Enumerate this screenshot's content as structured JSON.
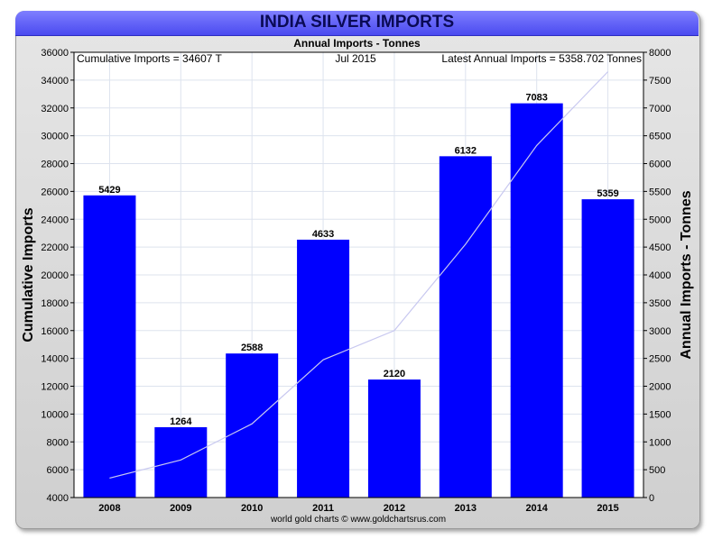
{
  "header": {
    "title": "INDIA SILVER IMPORTS",
    "subtitle": "Annual Imports - Tonnes"
  },
  "info": {
    "left": "Cumulative Imports = 34607 T",
    "center": "Jul 2015",
    "right": "Latest Annual Imports = 5358.702 Tonnes"
  },
  "footer": {
    "credit": "world gold charts © www.goldchartsrus.com"
  },
  "colors": {
    "bar": "#0000ff",
    "line": "#c8c8f0",
    "panel": "#dcdcdc",
    "title_bar": "#5a5af5",
    "title_text": "#0a0a55"
  },
  "chart_data": {
    "type": "bar",
    "categories": [
      "2008",
      "2009",
      "2010",
      "2011",
      "2012",
      "2013",
      "2014",
      "2015"
    ],
    "series": [
      {
        "axis": "right",
        "type": "bar",
        "values": [
          5429,
          1264,
          2588,
          4633,
          2120,
          6132,
          7083,
          5359
        ]
      },
      {
        "axis": "left",
        "type": "line",
        "values": [
          5400,
          6700,
          9300,
          13900,
          16000,
          22200,
          29300,
          34607
        ]
      }
    ],
    "data_labels": [
      "5429",
      "1264",
      "2588",
      "4633",
      "2120",
      "6132",
      "7083",
      "5359"
    ],
    "ylabel": "Cumulative Imports",
    "y2label": "Annual Imports - Tonnes",
    "ylim": [
      4000,
      36000
    ],
    "y2lim": [
      0,
      8000
    ],
    "yticks": [
      4000,
      6000,
      8000,
      10000,
      12000,
      14000,
      16000,
      18000,
      20000,
      22000,
      24000,
      26000,
      28000,
      30000,
      32000,
      34000,
      36000
    ],
    "y2ticks": [
      0,
      500,
      1000,
      1500,
      2000,
      2500,
      3000,
      3500,
      4000,
      4500,
      5000,
      5500,
      6000,
      6500,
      7000,
      7500,
      8000
    ],
    "grid": true
  }
}
